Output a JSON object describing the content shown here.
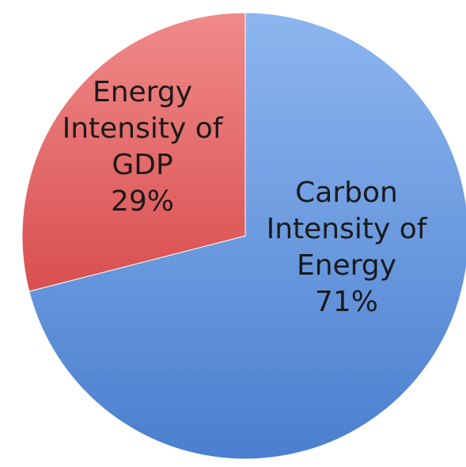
{
  "chart_data": {
    "type": "pie",
    "slices": [
      {
        "label_lines": [
          "Carbon",
          "Intensity of",
          "Energy"
        ],
        "value_label": "71%",
        "value": 71,
        "color": "#5b8fd8"
      },
      {
        "label_lines": [
          "Energy",
          "Intensity of",
          "GDP"
        ],
        "value_label": "29%",
        "value": 29,
        "color": "#e06060"
      }
    ]
  }
}
